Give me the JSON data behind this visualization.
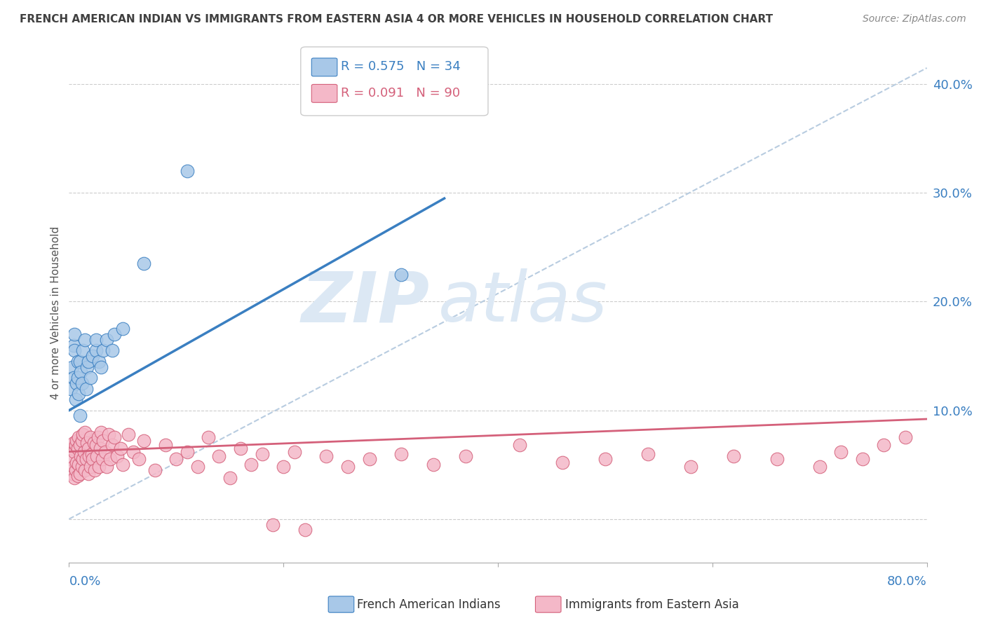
{
  "title": "FRENCH AMERICAN INDIAN VS IMMIGRANTS FROM EASTERN ASIA 4 OR MORE VEHICLES IN HOUSEHOLD CORRELATION CHART",
  "source": "Source: ZipAtlas.com",
  "ylabel": "4 or more Vehicles in Household",
  "xmin": 0.0,
  "xmax": 0.8,
  "ymin": -0.04,
  "ymax": 0.42,
  "yticks": [
    0.0,
    0.1,
    0.2,
    0.3,
    0.4
  ],
  "ytick_labels": [
    "",
    "10.0%",
    "20.0%",
    "30.0%",
    "40.0%"
  ],
  "legend_blue_r": "R = 0.575",
  "legend_blue_n": "N = 34",
  "legend_pink_r": "R = 0.091",
  "legend_pink_n": "N = 90",
  "blue_color": "#a8c8e8",
  "blue_line_color": "#3a7fc1",
  "pink_color": "#f4b8c8",
  "pink_line_color": "#d4607a",
  "ref_line_color": "#b8cce0",
  "grid_color": "#cccccc",
  "title_color": "#404040",
  "source_color": "#888888",
  "watermark_color": "#dce8f4",
  "blue_scatter_x": [
    0.002,
    0.003,
    0.004,
    0.004,
    0.005,
    0.005,
    0.006,
    0.007,
    0.008,
    0.008,
    0.009,
    0.01,
    0.01,
    0.011,
    0.012,
    0.013,
    0.015,
    0.016,
    0.017,
    0.018,
    0.02,
    0.022,
    0.025,
    0.025,
    0.028,
    0.03,
    0.032,
    0.035,
    0.04,
    0.042,
    0.05,
    0.07,
    0.11,
    0.31
  ],
  "blue_scatter_y": [
    0.12,
    0.14,
    0.16,
    0.13,
    0.155,
    0.17,
    0.11,
    0.125,
    0.13,
    0.145,
    0.115,
    0.095,
    0.145,
    0.135,
    0.125,
    0.155,
    0.165,
    0.12,
    0.14,
    0.145,
    0.13,
    0.15,
    0.155,
    0.165,
    0.145,
    0.14,
    0.155,
    0.165,
    0.155,
    0.17,
    0.175,
    0.235,
    0.32,
    0.225
  ],
  "pink_scatter_x": [
    0.002,
    0.003,
    0.003,
    0.004,
    0.004,
    0.005,
    0.005,
    0.006,
    0.006,
    0.007,
    0.007,
    0.008,
    0.008,
    0.009,
    0.009,
    0.01,
    0.01,
    0.011,
    0.012,
    0.012,
    0.013,
    0.013,
    0.014,
    0.015,
    0.015,
    0.016,
    0.017,
    0.018,
    0.018,
    0.019,
    0.02,
    0.02,
    0.021,
    0.022,
    0.023,
    0.024,
    0.025,
    0.026,
    0.027,
    0.028,
    0.029,
    0.03,
    0.031,
    0.032,
    0.034,
    0.035,
    0.037,
    0.038,
    0.04,
    0.042,
    0.045,
    0.048,
    0.05,
    0.055,
    0.06,
    0.065,
    0.07,
    0.08,
    0.09,
    0.1,
    0.11,
    0.12,
    0.13,
    0.14,
    0.15,
    0.16,
    0.17,
    0.18,
    0.19,
    0.2,
    0.21,
    0.22,
    0.24,
    0.26,
    0.28,
    0.31,
    0.34,
    0.37,
    0.42,
    0.46,
    0.5,
    0.54,
    0.58,
    0.62,
    0.66,
    0.7,
    0.72,
    0.74,
    0.76,
    0.78
  ],
  "pink_scatter_y": [
    0.055,
    0.042,
    0.065,
    0.048,
    0.07,
    0.038,
    0.062,
    0.045,
    0.068,
    0.052,
    0.072,
    0.04,
    0.065,
    0.05,
    0.075,
    0.042,
    0.068,
    0.058,
    0.048,
    0.072,
    0.055,
    0.078,
    0.062,
    0.045,
    0.08,
    0.055,
    0.07,
    0.042,
    0.065,
    0.058,
    0.048,
    0.075,
    0.06,
    0.055,
    0.07,
    0.045,
    0.068,
    0.058,
    0.075,
    0.048,
    0.065,
    0.08,
    0.055,
    0.072,
    0.062,
    0.048,
    0.078,
    0.055,
    0.068,
    0.075,
    0.058,
    0.065,
    0.05,
    0.078,
    0.062,
    0.055,
    0.072,
    0.045,
    0.068,
    0.055,
    0.062,
    0.048,
    0.075,
    0.058,
    0.038,
    0.065,
    0.05,
    0.06,
    -0.005,
    0.048,
    0.062,
    -0.01,
    0.058,
    0.048,
    0.055,
    0.06,
    0.05,
    0.058,
    0.068,
    0.052,
    0.055,
    0.06,
    0.048,
    0.058,
    0.055,
    0.048,
    0.062,
    0.055,
    0.068,
    0.075
  ],
  "blue_line_x0": 0.0,
  "blue_line_x1": 0.35,
  "blue_line_y0": 0.1,
  "blue_line_y1": 0.295,
  "pink_line_x0": 0.0,
  "pink_line_x1": 0.8,
  "pink_line_y0": 0.062,
  "pink_line_y1": 0.092,
  "ref_line_x0": 0.0,
  "ref_line_x1": 0.8,
  "ref_line_y0": 0.0,
  "ref_line_y1": 0.415
}
